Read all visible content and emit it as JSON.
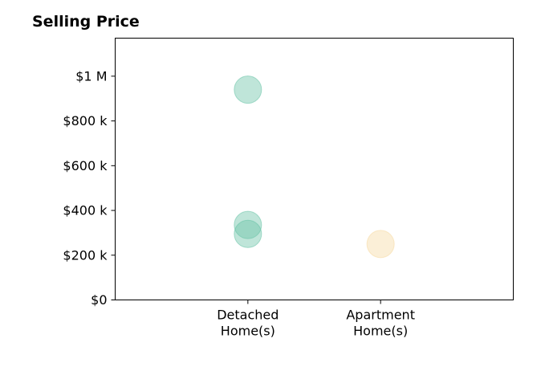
{
  "chart_data": {
    "type": "scatter",
    "title": "Selling Price",
    "xlabel": "",
    "ylabel": "",
    "categories": [
      {
        "line1": "Detached",
        "line2": "Home(s)"
      },
      {
        "line1": "Apartment",
        "line2": "Home(s)"
      }
    ],
    "x_range": [
      -1,
      2
    ],
    "ylim": [
      0,
      1170000
    ],
    "yticks": [
      {
        "value": 0,
        "label": "$0"
      },
      {
        "value": 200000,
        "label": "$200 k"
      },
      {
        "value": 400000,
        "label": "$400 k"
      },
      {
        "value": 600000,
        "label": "$600 k"
      },
      {
        "value": 800000,
        "label": "$800 k"
      },
      {
        "value": 1000000,
        "label": "$1 M"
      }
    ],
    "points": [
      {
        "category": 0,
        "value": 940000,
        "color": "#66c2a5"
      },
      {
        "category": 0,
        "value": 335000,
        "color": "#66c2a5"
      },
      {
        "category": 0,
        "value": 295000,
        "color": "#66c2a5"
      },
      {
        "category": 1,
        "value": 250000,
        "color": "#f5d9a0"
      }
    ],
    "grid": false,
    "legend": "none"
  }
}
